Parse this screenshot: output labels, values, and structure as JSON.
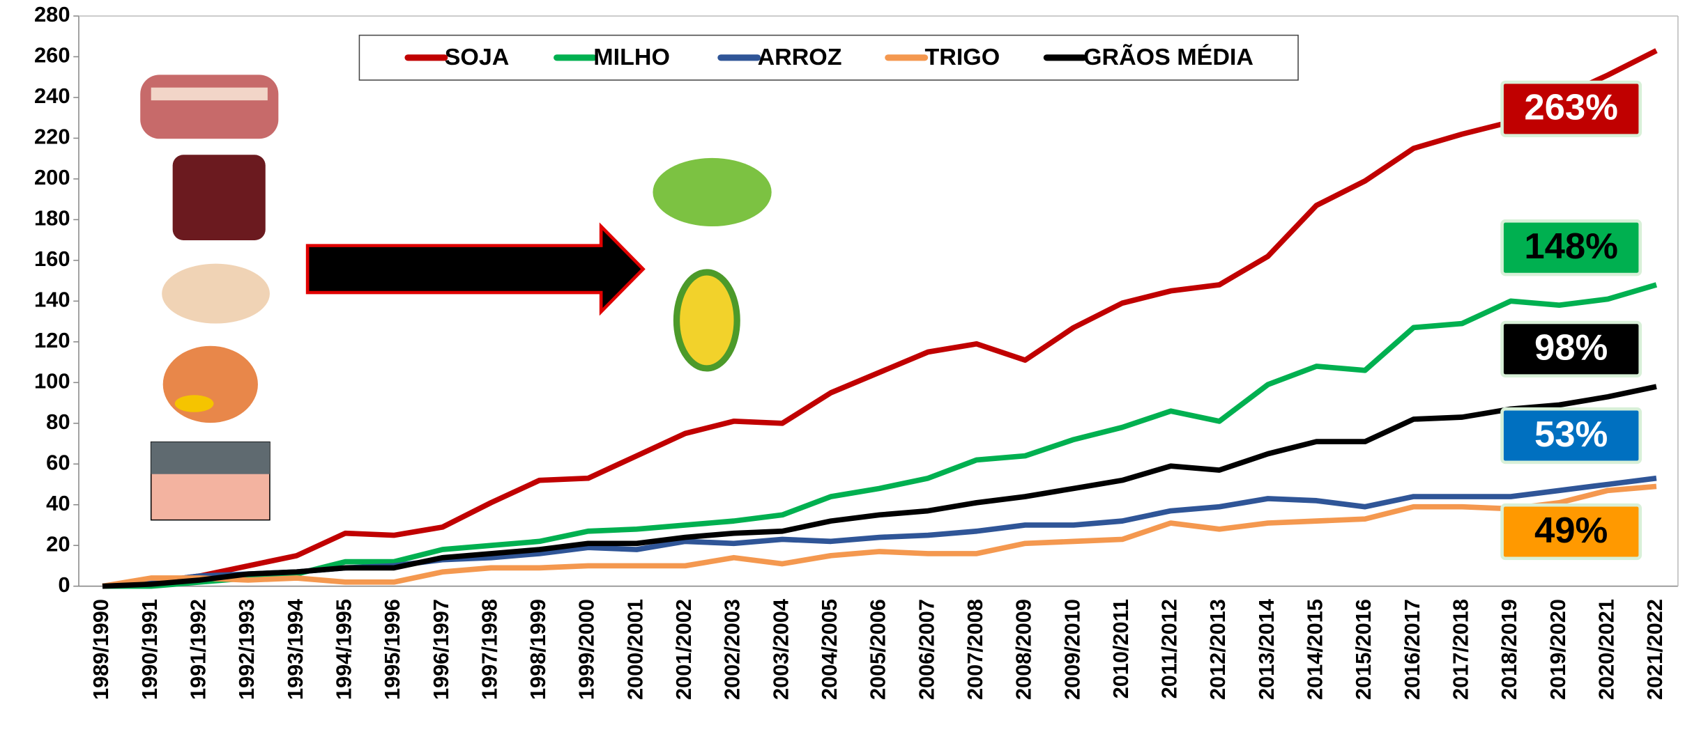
{
  "chart_data": {
    "type": "line",
    "categories": [
      "1989/1990",
      "1990/1991",
      "1991/1992",
      "1992/1993",
      "1993/1994",
      "1994/1995",
      "1995/1996",
      "1996/1997",
      "1997/1998",
      "1998/1999",
      "1999/2000",
      "2000/2001",
      "2001/2002",
      "2002/2003",
      "2003/2004",
      "2004/2005",
      "2005/2006",
      "2006/2007",
      "2007/2008",
      "2008/2009",
      "2009/2010",
      "2010/2011",
      "2011/2012",
      "2012/2013",
      "2013/2014",
      "2014/2015",
      "2015/2016",
      "2016/2017",
      "2017/2018",
      "2018/2019",
      "2019/2020",
      "2020/2021",
      "2021/2022"
    ],
    "series": [
      {
        "name": "SOJA",
        "color": "#c00000",
        "values": [
          0,
          2,
          5,
          10,
          15,
          26,
          25,
          29,
          41,
          52,
          53,
          64,
          75,
          81,
          80,
          95,
          105,
          115,
          119,
          111,
          127,
          139,
          145,
          148,
          162,
          187,
          199,
          215,
          222,
          228,
          240,
          251,
          263
        ]
      },
      {
        "name": "MILHO",
        "color": "#00b050",
        "values": [
          0,
          0,
          2,
          4,
          6,
          12,
          12,
          18,
          20,
          22,
          27,
          28,
          30,
          32,
          35,
          44,
          48,
          53,
          62,
          64,
          72,
          78,
          86,
          81,
          99,
          108,
          106,
          127,
          129,
          140,
          138,
          141,
          148
        ]
      },
      {
        "name": "ARROZ",
        "color": "#2f5597",
        "values": [
          0,
          2,
          5,
          6,
          7,
          9,
          10,
          13,
          14,
          16,
          19,
          18,
          22,
          21,
          23,
          22,
          24,
          25,
          27,
          30,
          30,
          32,
          37,
          39,
          43,
          42,
          39,
          44,
          44,
          44,
          47,
          50,
          53
        ]
      },
      {
        "name": "TRIGO",
        "color": "#f4984f",
        "values": [
          0,
          4,
          4,
          3,
          4,
          2,
          2,
          7,
          9,
          9,
          10,
          10,
          10,
          14,
          11,
          15,
          17,
          16,
          16,
          21,
          22,
          23,
          31,
          28,
          31,
          32,
          33,
          39,
          39,
          38,
          41,
          47,
          49
        ]
      },
      {
        "name": "GRÃOS MÉDIA",
        "color": "#000000",
        "values": [
          0,
          1,
          3,
          6,
          7,
          9,
          9,
          14,
          16,
          18,
          21,
          21,
          24,
          26,
          27,
          32,
          35,
          37,
          41,
          44,
          48,
          52,
          59,
          57,
          65,
          71,
          71,
          82,
          83,
          87,
          89,
          93,
          98
        ]
      }
    ],
    "annotations": [
      {
        "text": "263%",
        "color": "#c00000",
        "text_color": "#ffffff"
      },
      {
        "text": "148%",
        "color": "#00b050",
        "text_color": "#000000"
      },
      {
        "text": "98%",
        "color": "#000000",
        "text_color": "#ffffff"
      },
      {
        "text": "53%",
        "color": "#0070c0",
        "text_color": "#ffffff"
      },
      {
        "text": "49%",
        "color": "#ff9900",
        "text_color": "#000000"
      }
    ],
    "ylim": [
      0,
      280
    ],
    "yticks": [
      0,
      20,
      40,
      60,
      80,
      100,
      120,
      140,
      160,
      180,
      200,
      220,
      240,
      260,
      280
    ]
  }
}
